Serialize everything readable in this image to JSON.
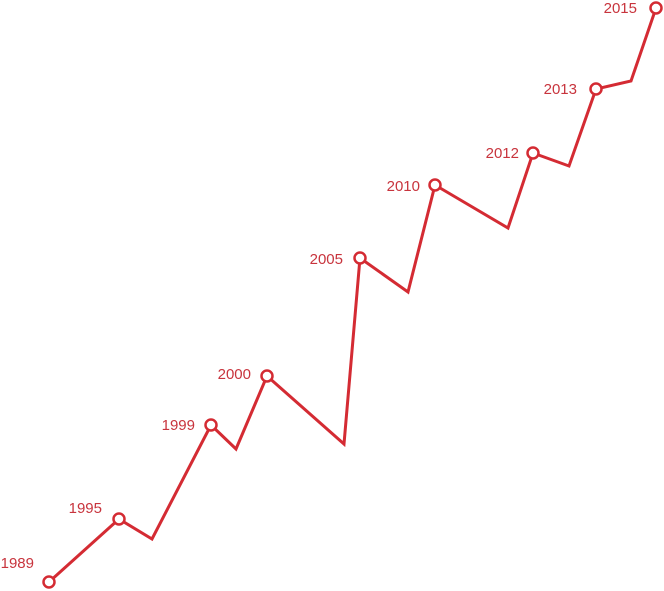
{
  "timeline": {
    "line_color": "#d42b33",
    "label_color": "#c8343d",
    "marker_fill": "#ffffff",
    "milestones": [
      {
        "year": "1989"
      },
      {
        "year": "1995"
      },
      {
        "year": "1999"
      },
      {
        "year": "2000"
      },
      {
        "year": "2005"
      },
      {
        "year": "2010"
      },
      {
        "year": "2012"
      },
      {
        "year": "2013"
      },
      {
        "year": "2015"
      }
    ]
  }
}
